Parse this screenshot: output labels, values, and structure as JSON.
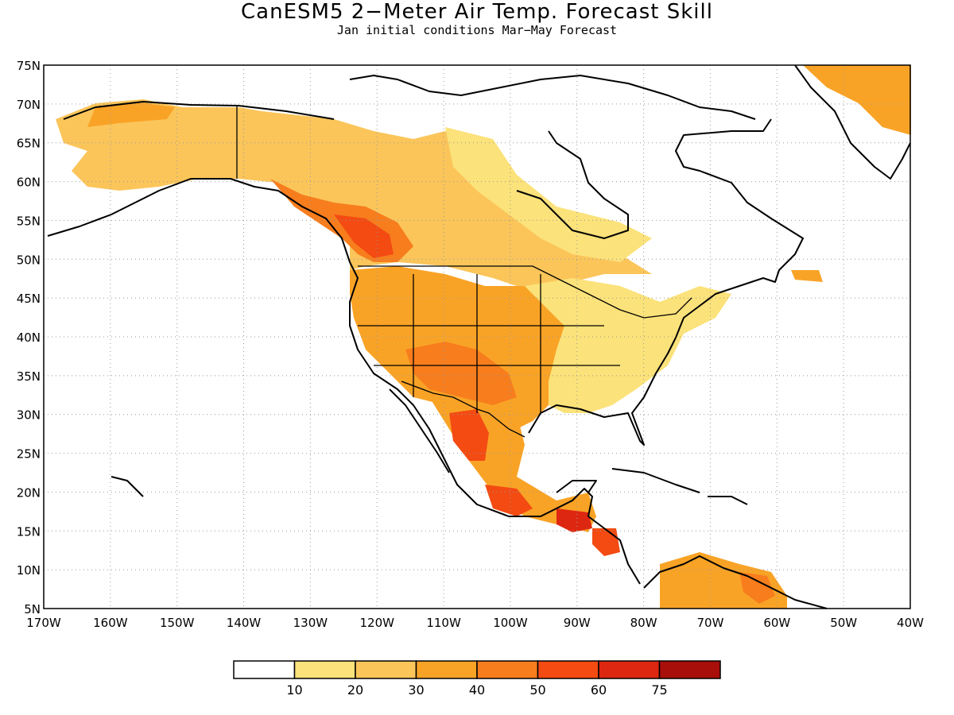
{
  "title": "CanESM5 2−Meter Air Temp. Forecast Skill",
  "subtitle": "Jan initial conditions  Mar−May Forecast",
  "map": {
    "lon_range": [
      -170,
      -40
    ],
    "lat_range": [
      5,
      75
    ],
    "lon_tick_labels": [
      "170W",
      "160W",
      "150W",
      "140W",
      "130W",
      "120W",
      "110W",
      "100W",
      "90W",
      "80W",
      "70W",
      "60W",
      "50W",
      "40W"
    ],
    "lat_tick_labels": [
      "5N",
      "10N",
      "15N",
      "20N",
      "25N",
      "30N",
      "35N",
      "40N",
      "45N",
      "50N",
      "55N",
      "60N",
      "65N",
      "70N",
      "75N"
    ],
    "grid": "dotted"
  },
  "colorbar": {
    "colors": [
      "#ffffff",
      "#fbe27a",
      "#fbc55a",
      "#f9a326",
      "#f77d1d",
      "#f34b12",
      "#de2710",
      "#a80f0a"
    ],
    "labels": [
      "10",
      "20",
      "30",
      "40",
      "50",
      "60",
      "75"
    ]
  }
}
